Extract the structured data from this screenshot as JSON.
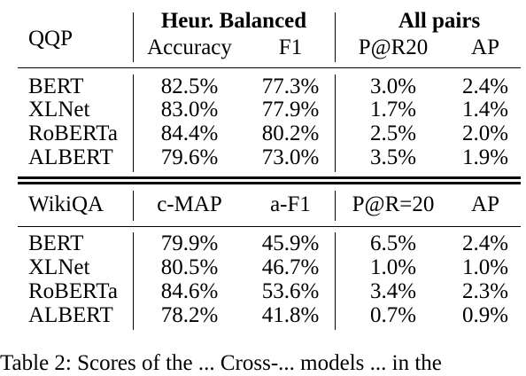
{
  "table1": {
    "corner": "QQP",
    "group_left": "Heur. Balanced",
    "group_right": "All pairs",
    "columns": [
      "Accuracy",
      "F1",
      "P@R20",
      "AP"
    ],
    "rows": [
      {
        "model": "BERT",
        "values": [
          "82.5%",
          "77.3%",
          "3.0%",
          "2.4%"
        ]
      },
      {
        "model": "XLNet",
        "values": [
          "83.0%",
          "77.9%",
          "1.7%",
          "1.4%"
        ]
      },
      {
        "model": "RoBERTa",
        "values": [
          "84.4%",
          "80.2%",
          "2.5%",
          "2.0%"
        ]
      },
      {
        "model": "ALBERT",
        "values": [
          "79.6%",
          "73.0%",
          "3.5%",
          "1.9%"
        ]
      }
    ]
  },
  "table2": {
    "corner": "WikiQA",
    "columns": [
      "c-MAP",
      "a-F1",
      "P@R=20",
      "AP"
    ],
    "rows": [
      {
        "model": "BERT",
        "values": [
          "79.9%",
          "45.9%",
          "6.5%",
          "2.4%"
        ]
      },
      {
        "model": "XLNet",
        "values": [
          "80.5%",
          "46.7%",
          "1.0%",
          "1.0%"
        ]
      },
      {
        "model": "RoBERTa",
        "values": [
          "84.6%",
          "53.6%",
          "3.4%",
          "2.3%"
        ]
      },
      {
        "model": "ALBERT",
        "values": [
          "78.2%",
          "41.8%",
          "0.7%",
          "0.9%"
        ]
      }
    ]
  },
  "caption": "Table 2: Scores of the ... Cross-... models ... in the"
}
